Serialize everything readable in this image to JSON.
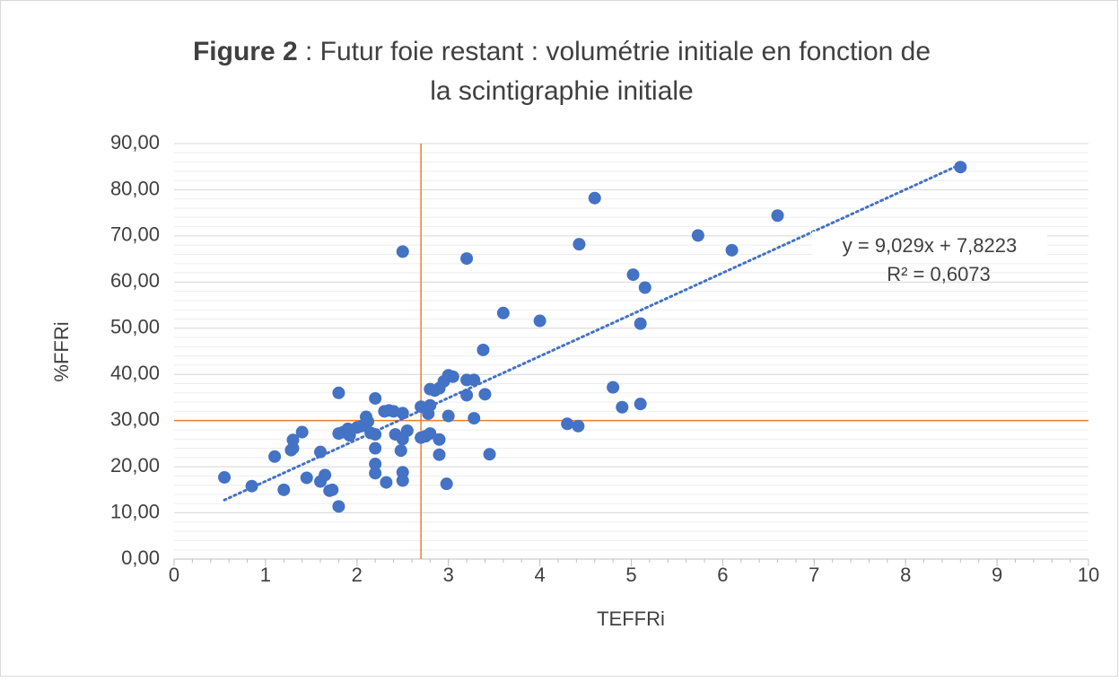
{
  "chart_data": {
    "type": "scatter",
    "title_bold": "Figure 2",
    "title_rest": " : Futur foie restant : volumétrie initiale en fonction de",
    "title_line2": "la scintigraphie initiale",
    "x_label": "TEFFRi",
    "y_label": "%FFRi",
    "color": "#4472c4",
    "xlim": [
      0,
      10
    ],
    "xticks": [
      0,
      1,
      2,
      3,
      4,
      5,
      6,
      7,
      8,
      9,
      10
    ],
    "ylim": [
      0,
      90
    ],
    "yticks": [
      {
        "value": 0,
        "label": "0,00"
      },
      {
        "value": 10,
        "label": "10,00"
      },
      {
        "value": 20,
        "label": "20,00"
      },
      {
        "value": 30,
        "label": "30,00"
      },
      {
        "value": 40,
        "label": "40,00"
      },
      {
        "value": 50,
        "label": "50,00"
      },
      {
        "value": 60,
        "label": "60,00"
      },
      {
        "value": 70,
        "label": "70,00"
      },
      {
        "value": 80,
        "label": "80,00"
      },
      {
        "value": 90,
        "label": "90,00"
      }
    ],
    "grid": true,
    "y_minor_step": 2,
    "x_minor_step": 0.2,
    "reference_lines": {
      "x": 2.7,
      "y": 30,
      "color": "#ed7d31"
    },
    "trendline": {
      "slope": 9.029,
      "intercept": 7.8223,
      "equation": "y = 9,029x + 7,8223",
      "r2": "R² = 0,6073"
    },
    "x": [
      0.55,
      0.85,
      1.1,
      1.2,
      1.28,
      1.3,
      1.3,
      1.4,
      1.45,
      1.6,
      1.6,
      1.65,
      1.7,
      1.73,
      1.8,
      1.8,
      1.8,
      1.85,
      1.9,
      1.92,
      2.0,
      2.05,
      2.1,
      2.12,
      2.15,
      2.2,
      2.2,
      2.2,
      2.2,
      2.2,
      2.3,
      2.32,
      2.35,
      2.4,
      2.42,
      2.48,
      2.5,
      2.5,
      2.5,
      2.5,
      2.5,
      2.55,
      2.7,
      2.7,
      2.75,
      2.78,
      2.8,
      2.8,
      2.8,
      2.85,
      2.9,
      2.9,
      2.9,
      2.95,
      2.98,
      3.0,
      3.0,
      3.05,
      3.2,
      3.2,
      3.2,
      3.28,
      3.28,
      3.38,
      3.4,
      3.45,
      3.6,
      4.0,
      4.3,
      4.42,
      4.43,
      4.6,
      4.8,
      4.9,
      5.02,
      5.1,
      5.1,
      5.15,
      5.73,
      6.1,
      6.6,
      8.6
    ],
    "values": [
      17.7,
      15.8,
      22.2,
      15.0,
      23.6,
      24.0,
      25.8,
      27.5,
      17.6,
      23.2,
      16.8,
      18.2,
      14.8,
      15.0,
      11.4,
      36.0,
      27.2,
      27.5,
      28.2,
      26.8,
      28.5,
      28.8,
      30.8,
      29.8,
      27.3,
      34.8,
      27.0,
      24.0,
      20.6,
      18.6,
      32.0,
      16.6,
      32.2,
      32.0,
      27.0,
      23.5,
      31.6,
      26.0,
      18.8,
      17.0,
      66.6,
      27.8,
      26.3,
      33.0,
      26.6,
      31.5,
      36.8,
      33.3,
      27.2,
      36.5,
      37.0,
      25.9,
      22.6,
      38.5,
      16.3,
      39.8,
      31.0,
      39.5,
      38.8,
      35.5,
      65.1,
      38.8,
      30.5,
      45.3,
      35.7,
      22.7,
      53.3,
      51.6,
      29.3,
      28.8,
      68.2,
      78.2,
      37.2,
      32.9,
      61.6,
      51.0,
      33.6,
      58.8,
      70.1,
      66.9,
      74.4,
      84.9
    ]
  }
}
